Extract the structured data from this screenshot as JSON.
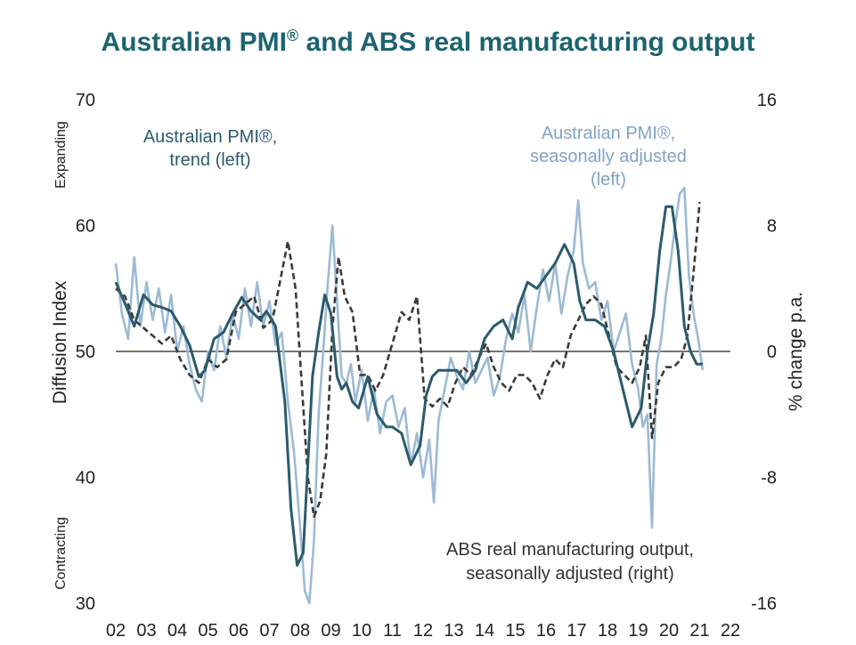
{
  "chart_data": {
    "type": "line",
    "title_main": "Australian PMI",
    "title_sup": "®",
    "title_rest": " and ABS real manufacturing output",
    "ylabel_left": "Diffusion Index",
    "ylabel_right": "% change p.a.",
    "side_top": "Expanding",
    "side_bottom": "Contracting",
    "left_ticks": [
      "70",
      "60",
      "50",
      "40",
      "30"
    ],
    "right_ticks": [
      "16",
      "8",
      "0",
      "-8",
      "-16"
    ],
    "x_ticks": [
      "02",
      "03",
      "04",
      "05",
      "06",
      "07",
      "08",
      "09",
      "10",
      "11",
      "12",
      "13",
      "14",
      "15",
      "16",
      "17",
      "18",
      "19",
      "20",
      "21",
      "22"
    ],
    "ylim_left": [
      30,
      70
    ],
    "ylim_right": [
      -16,
      16
    ],
    "xlim": [
      2002,
      2022
    ],
    "reference_line": 50,
    "colors": {
      "trend": "#2b5b6c",
      "sa": "#9dbad6",
      "abs": "#3a3a3a",
      "title": "#1d6370"
    },
    "annotations": {
      "trend": [
        "Australian PMI®,",
        "trend (left)"
      ],
      "sa": [
        "Australian PMI®,",
        "seasonally adjusted",
        "(left)"
      ],
      "abs": [
        "ABS real manufacturing output,",
        "seasonally adjusted (right)"
      ]
    },
    "series": [
      {
        "name": "Australian PMI®, trend (left)",
        "axis": "left",
        "x": [
          2002.0,
          2002.3,
          2002.6,
          2002.9,
          2003.2,
          2003.5,
          2003.8,
          2004.1,
          2004.4,
          2004.7,
          2004.9,
          2005.2,
          2005.5,
          2005.8,
          2006.1,
          2006.4,
          2006.7,
          2006.9,
          2007.2,
          2007.5,
          2007.7,
          2007.9,
          2008.1,
          2008.25,
          2008.4,
          2008.6,
          2008.8,
          2009.0,
          2009.2,
          2009.35,
          2009.5,
          2009.7,
          2009.9,
          2010.2,
          2010.5,
          2010.8,
          2011.0,
          2011.3,
          2011.6,
          2011.9,
          2012.1,
          2012.3,
          2012.5,
          2012.8,
          2013.1,
          2013.4,
          2013.7,
          2014.0,
          2014.3,
          2014.6,
          2014.9,
          2015.1,
          2015.4,
          2015.7,
          2016.0,
          2016.3,
          2016.6,
          2016.9,
          2017.1,
          2017.3,
          2017.6,
          2017.9,
          2018.2,
          2018.5,
          2018.8,
          2019.1,
          2019.3,
          2019.5,
          2019.7,
          2019.9,
          2020.1,
          2020.3,
          2020.5,
          2020.7,
          2020.9,
          2021.1
        ],
        "values": [
          55.5,
          53.8,
          52.0,
          54.5,
          53.7,
          53.5,
          53.2,
          52.0,
          50.5,
          48.0,
          48.5,
          51.0,
          51.5,
          53.0,
          54.3,
          53.2,
          52.5,
          53.2,
          52.0,
          46.0,
          37.5,
          33.0,
          34.0,
          41.0,
          48.0,
          51.5,
          54.5,
          53.0,
          48.0,
          47.0,
          47.5,
          46.0,
          45.5,
          48.0,
          45.0,
          44.0,
          44.0,
          43.5,
          41.0,
          42.5,
          46.5,
          48.0,
          48.5,
          48.5,
          48.5,
          47.5,
          48.5,
          51.0,
          52.0,
          52.5,
          51.0,
          53.5,
          55.5,
          55.0,
          56.0,
          57.0,
          58.5,
          57.0,
          54.0,
          52.5,
          52.5,
          52.0,
          50.0,
          47.0,
          44.0,
          45.5,
          50.0,
          53.0,
          58.0,
          61.5,
          61.5,
          58.0,
          52.0,
          50.0,
          49.0,
          49.0
        ]
      },
      {
        "name": "Australian PMI®, seasonally adjusted (left)",
        "axis": "left",
        "x": [
          2002.0,
          2002.2,
          2002.4,
          2002.6,
          2002.8,
          2003.0,
          2003.2,
          2003.4,
          2003.6,
          2003.8,
          2004.0,
          2004.2,
          2004.4,
          2004.6,
          2004.8,
          2005.0,
          2005.2,
          2005.4,
          2005.6,
          2005.8,
          2006.0,
          2006.2,
          2006.4,
          2006.6,
          2006.8,
          2007.0,
          2007.2,
          2007.4,
          2007.6,
          2007.8,
          2008.0,
          2008.15,
          2008.3,
          2008.45,
          2008.6,
          2008.75,
          2008.9,
          2009.05,
          2009.2,
          2009.35,
          2009.5,
          2009.65,
          2009.8,
          2010.0,
          2010.2,
          2010.4,
          2010.6,
          2010.8,
          2011.0,
          2011.2,
          2011.4,
          2011.6,
          2011.8,
          2012.0,
          2012.2,
          2012.35,
          2012.5,
          2012.7,
          2012.9,
          2013.1,
          2013.3,
          2013.5,
          2013.7,
          2013.9,
          2014.1,
          2014.3,
          2014.5,
          2014.7,
          2014.9,
          2015.1,
          2015.3,
          2015.5,
          2015.7,
          2015.9,
          2016.1,
          2016.3,
          2016.5,
          2016.7,
          2016.9,
          2017.05,
          2017.2,
          2017.4,
          2017.6,
          2017.8,
          2018.0,
          2018.2,
          2018.4,
          2018.6,
          2018.8,
          2019.0,
          2019.15,
          2019.3,
          2019.45,
          2019.6,
          2019.75,
          2019.9,
          2020.05,
          2020.2,
          2020.35,
          2020.5,
          2020.65,
          2020.8,
          2020.95,
          2021.1
        ],
        "values": [
          57.0,
          53.0,
          51.0,
          57.5,
          52.0,
          55.5,
          52.5,
          55.0,
          51.5,
          54.5,
          50.0,
          52.0,
          49.0,
          47.0,
          46.0,
          50.0,
          48.5,
          52.0,
          49.5,
          53.0,
          51.0,
          55.0,
          52.0,
          55.5,
          52.0,
          54.0,
          50.5,
          51.5,
          46.0,
          42.0,
          36.0,
          31.0,
          30.0,
          35.0,
          45.0,
          50.0,
          55.5,
          60.0,
          54.0,
          48.0,
          47.5,
          49.0,
          46.0,
          48.5,
          44.5,
          47.0,
          43.5,
          46.0,
          46.5,
          44.0,
          45.5,
          41.0,
          43.5,
          40.0,
          43.0,
          38.0,
          44.5,
          47.0,
          49.5,
          48.0,
          47.0,
          50.0,
          47.5,
          48.5,
          49.5,
          46.5,
          48.0,
          51.0,
          53.0,
          51.5,
          54.5,
          50.0,
          53.5,
          56.5,
          54.0,
          57.0,
          53.0,
          56.0,
          58.0,
          62.0,
          57.0,
          55.0,
          55.5,
          52.5,
          54.0,
          50.0,
          51.5,
          53.0,
          49.0,
          47.0,
          44.0,
          45.0,
          36.0,
          49.0,
          51.0,
          54.5,
          57.0,
          60.0,
          62.5,
          63.0,
          56.0,
          53.0,
          51.0,
          48.5
        ]
      },
      {
        "name": "ABS real manufacturing output, seasonally adjusted (right)",
        "axis": "right",
        "x": [
          2002.0,
          2002.3,
          2002.6,
          2002.9,
          2003.2,
          2003.5,
          2003.8,
          2004.1,
          2004.4,
          2004.7,
          2005.0,
          2005.3,
          2005.6,
          2005.9,
          2006.2,
          2006.5,
          2006.8,
          2007.1,
          2007.4,
          2007.6,
          2007.85,
          2008.05,
          2008.25,
          2008.45,
          2008.65,
          2008.85,
          2009.05,
          2009.25,
          2009.45,
          2009.7,
          2009.95,
          2010.2,
          2010.45,
          2010.7,
          2011.0,
          2011.3,
          2011.55,
          2011.8,
          2012.05,
          2012.3,
          2012.55,
          2012.8,
          2013.05,
          2013.3,
          2013.55,
          2013.8,
          2014.05,
          2014.3,
          2014.55,
          2014.8,
          2015.05,
          2015.3,
          2015.55,
          2015.8,
          2016.05,
          2016.3,
          2016.55,
          2016.8,
          2017.05,
          2017.3,
          2017.55,
          2017.8,
          2018.05,
          2018.3,
          2018.55,
          2018.8,
          2019.05,
          2019.25,
          2019.45,
          2019.65,
          2019.9,
          2020.15,
          2020.4,
          2020.6,
          2020.8,
          2021.0
        ],
        "values": [
          4.0,
          3.5,
          2.0,
          1.5,
          1.0,
          0.5,
          1.0,
          -0.5,
          -1.5,
          -2.0,
          -0.5,
          -1.0,
          -0.5,
          2.5,
          3.0,
          3.5,
          1.5,
          2.0,
          5.0,
          7.0,
          4.0,
          -2.0,
          -8.0,
          -10.5,
          -9.5,
          -6.5,
          1.5,
          6.0,
          3.5,
          2.5,
          -1.5,
          -1.5,
          -2.5,
          -1.5,
          0.5,
          2.5,
          2.0,
          3.5,
          -3.0,
          -3.5,
          -3.0,
          -3.5,
          -2.0,
          -1.0,
          -1.5,
          -0.5,
          0.5,
          -1.0,
          -2.0,
          -2.5,
          -1.5,
          -1.5,
          -2.0,
          -3.0,
          -1.5,
          -0.5,
          -1.0,
          1.0,
          2.0,
          3.0,
          3.5,
          3.0,
          1.0,
          -1.0,
          -1.5,
          -2.0,
          -1.0,
          1.0,
          -5.5,
          -2.0,
          -1.0,
          -1.0,
          -0.5,
          1.0,
          5.0,
          9.5
        ]
      }
    ]
  }
}
